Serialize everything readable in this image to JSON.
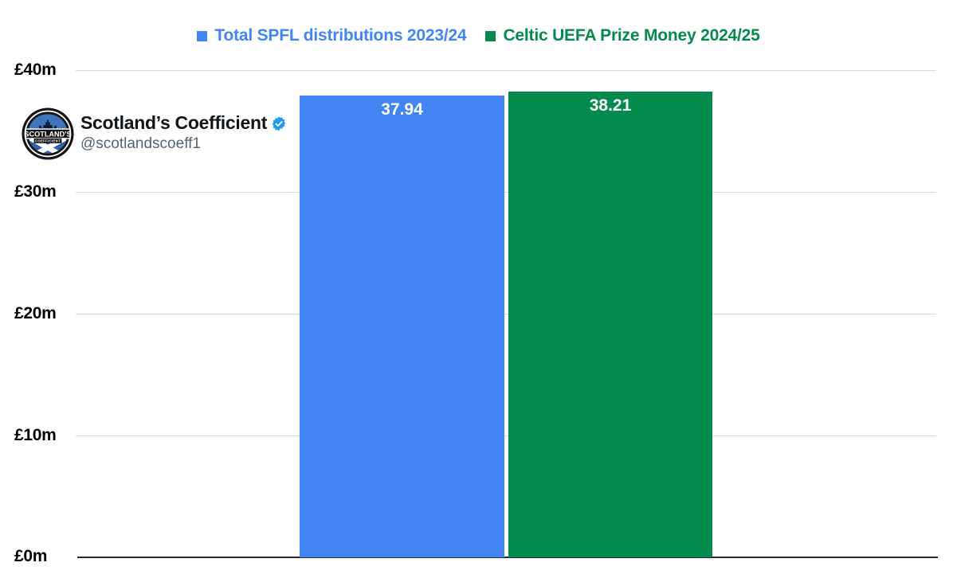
{
  "legend": {
    "items": [
      {
        "label": "Total SPFL distributions 2023/24",
        "color": "#4285F4"
      },
      {
        "label": "Celtic UEFA Prize Money 2024/25",
        "color": "#048A4D"
      }
    ]
  },
  "profile": {
    "name": "Scotland’s Coefficient",
    "handle": "@scotlandscoeff1",
    "logo_banner_text": "SCOTLAND'S",
    "logo_sub_text": "COEFFICIENT",
    "verified_color": "#1d9bf0"
  },
  "chart_data": {
    "type": "bar",
    "categories": [
      "Total SPFL distributions 2023/24",
      "Celtic UEFA Prize Money 2024/25"
    ],
    "values": [
      37.94,
      38.21
    ],
    "value_labels": [
      "37.94",
      "38.21"
    ],
    "colors": [
      "#4285F4",
      "#048A4D"
    ],
    "title": "",
    "xlabel": "",
    "ylabel": "",
    "yticks": [
      "£40m",
      "£30m",
      "£20m",
      "£10m",
      "£0m"
    ],
    "ylim": [
      0,
      40
    ],
    "grid": true,
    "gridline_color": "#d9d9d9",
    "axis_color": "#2b2b2b",
    "value_label_color": "#ffffff",
    "legend_position": "top"
  }
}
